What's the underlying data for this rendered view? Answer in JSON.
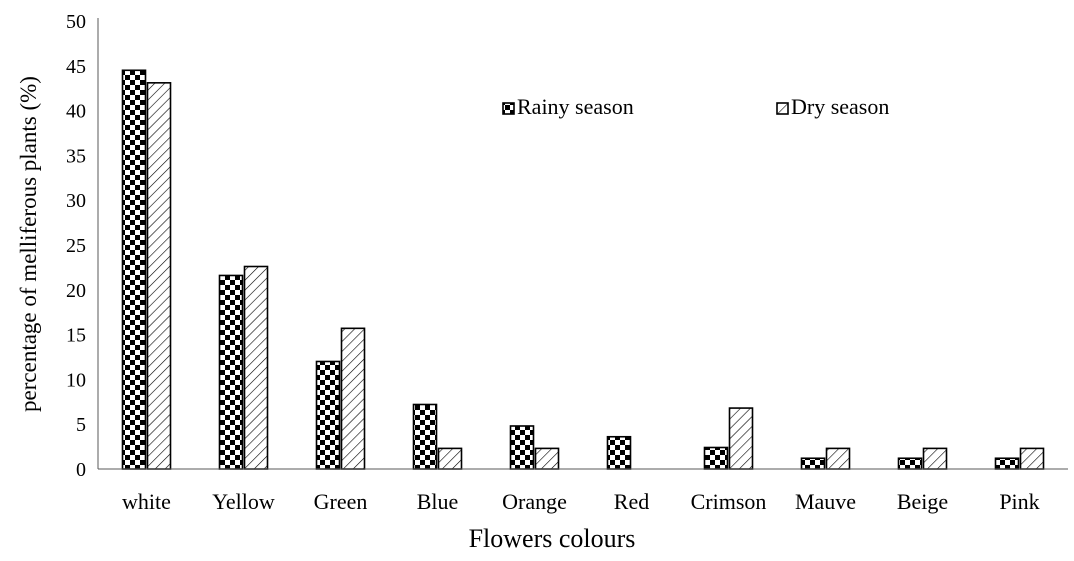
{
  "chart_data": {
    "type": "bar",
    "categories": [
      "white",
      "Yellow",
      "Green",
      "Blue",
      "Orange",
      "Red",
      "Crimson",
      "Mauve",
      "Beige",
      "Pink"
    ],
    "series": [
      {
        "name": "Rainy season",
        "values": [
          44.5,
          21.6,
          12.0,
          7.2,
          4.8,
          3.6,
          2.4,
          1.2,
          1.2,
          1.2
        ],
        "pattern": "checkerboard"
      },
      {
        "name": "Dry season",
        "values": [
          43.1,
          22.6,
          15.7,
          2.3,
          2.3,
          0,
          6.8,
          2.3,
          2.3,
          2.3
        ],
        "pattern": "diagonal-hatch"
      }
    ],
    "xlabel": "Flowers colours",
    "ylabel": "percentage of melliferous plants (%)",
    "ylim": [
      0,
      50
    ],
    "yticks": [
      "0",
      "5",
      "10",
      "15",
      "20",
      "25",
      "30",
      "35",
      "40",
      "45",
      "50"
    ],
    "grid": false,
    "legend_position": "top-right",
    "colors": {
      "bar_fill": "#000000",
      "background": "#ffffff",
      "axis": "#595959"
    }
  }
}
